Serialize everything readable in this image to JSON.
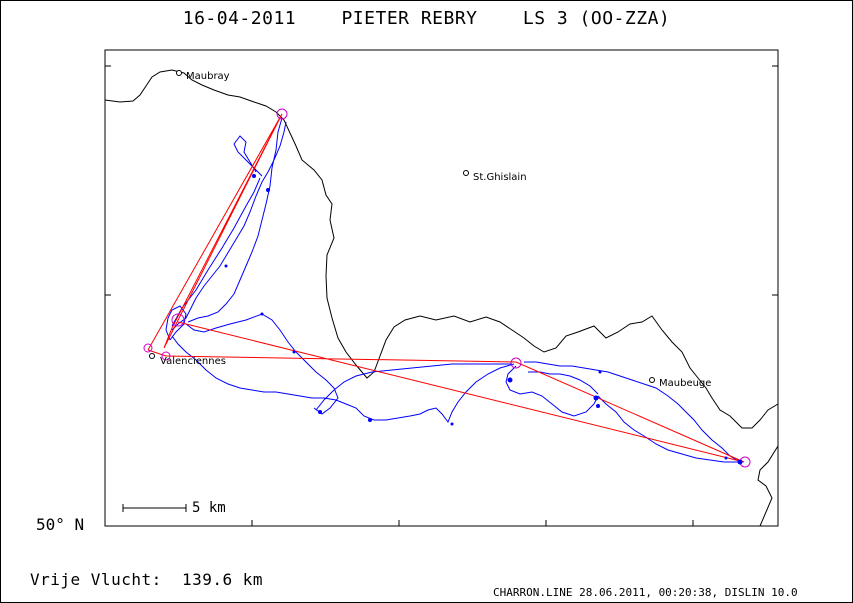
{
  "title": "16-04-2011    PIETER REBRY    LS 3 (OO-ZZA)",
  "latitude_label": "50° N",
  "scale_label": "5 km",
  "distance_label": "Vrije Vlucht:  139.6 km",
  "footer": "CHARRON.LINE 28.06.2011, 00:20:38, DISLIN 10.0",
  "towns": [
    {
      "name": "Maubray"
    },
    {
      "name": "St.Ghislain"
    },
    {
      "name": "Valenciennes"
    },
    {
      "name": "Maubeuge"
    }
  ],
  "colors": {
    "track": "#0000ff",
    "task_lines": "#ff0000",
    "turnpoints": "#cc00cc",
    "border": "#000000"
  }
}
